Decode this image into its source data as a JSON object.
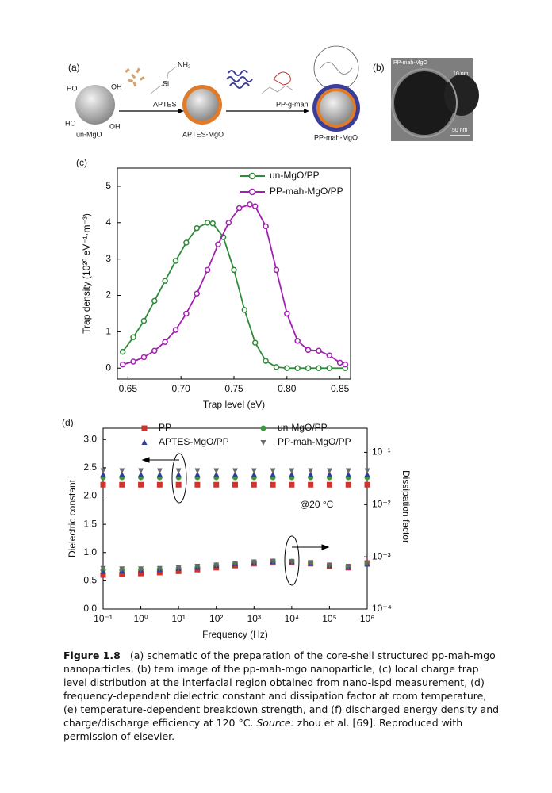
{
  "figure": {
    "panel_a": {
      "label": "(a)",
      "ho1": "HO",
      "oh1": "OH",
      "ho2": "HO",
      "oh2": "OH",
      "un_mgo": "un-MgO",
      "nh2": "NH₂",
      "si": "Si",
      "aptes": "APTES",
      "aptes_mgo": "APTES-MgO",
      "pp_g_mah": "PP-g-mah",
      "pp_mah_mgo": "PP-mah-MgO"
    },
    "panel_b": {
      "label": "(b)",
      "title": "PP-mah-MgO",
      "scale_small": "10 nm",
      "scale_large": "50 nm"
    }
  },
  "chart_data": [
    {
      "panel": "(c)",
      "type": "line",
      "xlabel": "Trap level (eV)",
      "ylabel": "Trap density (10²⁰ eV⁻¹·m⁻³)",
      "xlim": [
        0.64,
        0.86
      ],
      "ylim": [
        -0.3,
        5.5
      ],
      "xticks": [
        0.65,
        {
          "value": 0.7,
          "label": "0.70"
        },
        0.75,
        {
          "value": 0.8,
          "label": "0.80"
        },
        0.85
      ],
      "yticks": [
        0,
        1,
        2,
        3,
        4,
        5
      ],
      "legend": "upper right",
      "series": [
        {
          "name": "un-MgO/PP",
          "color": "#2e8b3a",
          "x": [
            0.645,
            0.655,
            0.665,
            0.675,
            0.685,
            0.695,
            0.705,
            0.715,
            0.725,
            0.73,
            0.74,
            0.75,
            0.76,
            0.77,
            0.78,
            0.79,
            0.8,
            0.81,
            0.82,
            0.83,
            0.84,
            0.855
          ],
          "values": [
            0.45,
            0.85,
            1.3,
            1.85,
            2.4,
            2.95,
            3.45,
            3.85,
            4.0,
            3.98,
            3.6,
            2.7,
            1.6,
            0.7,
            0.2,
            0.03,
            0.0,
            0.0,
            0.0,
            0.0,
            0.0,
            0.0
          ]
        },
        {
          "name": "PP-mah-MgO/PP",
          "color": "#a020b0",
          "x": [
            0.645,
            0.655,
            0.665,
            0.675,
            0.685,
            0.695,
            0.705,
            0.715,
            0.725,
            0.735,
            0.745,
            0.755,
            0.765,
            0.77,
            0.78,
            0.79,
            0.8,
            0.81,
            0.82,
            0.83,
            0.84,
            0.85,
            0.855
          ],
          "values": [
            0.1,
            0.18,
            0.3,
            0.48,
            0.72,
            1.05,
            1.5,
            2.05,
            2.7,
            3.4,
            4.0,
            4.4,
            4.5,
            4.45,
            3.9,
            2.7,
            1.5,
            0.75,
            0.5,
            0.48,
            0.35,
            0.15,
            0.1
          ]
        }
      ]
    },
    {
      "panel": "(d)",
      "type": "scatter",
      "xlabel": "Frequency (Hz)",
      "ylabel": "Dielectric constant",
      "y2label": "Dissipation factor",
      "annotation": "@20 °C",
      "log_x": true,
      "log_y2": true,
      "xlim": [
        0.1,
        1000000
      ],
      "ylim": [
        0,
        3.2
      ],
      "y2lim": [
        0.0001,
        0.29
      ],
      "xticks": [
        {
          "value": 0.1,
          "label": "10⁻¹"
        },
        {
          "value": 1,
          "label": "10⁰"
        },
        {
          "value": 10,
          "label": "10¹"
        },
        {
          "value": 100,
          "label": "10²"
        },
        {
          "value": 1000,
          "label": "10³"
        },
        {
          "value": 10000,
          "label": "10⁴"
        },
        {
          "value": 100000,
          "label": "10⁵"
        },
        {
          "value": 1000000,
          "label": "10⁶"
        }
      ],
      "yticks": [
        {
          "value": 0,
          "label": "0.0"
        },
        0.5,
        {
          "value": 1,
          "label": "1.0"
        },
        1.5,
        {
          "value": 2,
          "label": "2.0"
        },
        2.5,
        {
          "value": 3,
          "label": "3.0"
        }
      ],
      "y2ticks": [
        {
          "value": 0.0001,
          "label": "10⁻⁴"
        },
        {
          "value": 0.001,
          "label": "10⁻³"
        },
        {
          "value": 0.01,
          "label": "10⁻²"
        },
        {
          "value": 0.1,
          "label": "10⁻¹"
        }
      ],
      "x": [
        0.1,
        0.316,
        1,
        3.16,
        10,
        31.6,
        100,
        316,
        1000,
        3162,
        10000,
        31623,
        100000,
        316228,
        1000000
      ],
      "series": [
        {
          "name": "PP",
          "color": "#d2322d",
          "marker": "square",
          "values": [
            2.2,
            2.2,
            2.2,
            2.2,
            2.2,
            2.2,
            2.2,
            2.2,
            2.2,
            2.2,
            2.2,
            2.2,
            2.2,
            2.2,
            2.2
          ],
          "dissipation": [
            0.00045,
            0.00046,
            0.00048,
            0.0005,
            0.00053,
            0.00057,
            0.00062,
            0.00068,
            0.00074,
            0.00078,
            0.00078,
            0.00074,
            0.00066,
            0.00062,
            0.00076
          ]
        },
        {
          "name": "un-MgO/PP",
          "color": "#3c9a3c",
          "marker": "circle",
          "values": [
            2.33,
            2.33,
            2.33,
            2.33,
            2.33,
            2.33,
            2.33,
            2.33,
            2.33,
            2.33,
            2.33,
            2.33,
            2.33,
            2.33,
            2.33
          ],
          "dissipation": [
            0.00056,
            0.00056,
            0.00057,
            0.00058,
            0.0006,
            0.00064,
            0.00069,
            0.00074,
            0.00079,
            0.00082,
            0.00081,
            0.00076,
            0.00068,
            0.00064,
            0.00074
          ]
        },
        {
          "name": "APTES-MgO/PP",
          "color": "#2f3f9a",
          "marker": "triangle-up",
          "values": [
            2.38,
            2.38,
            2.38,
            2.38,
            2.38,
            2.38,
            2.38,
            2.38,
            2.38,
            2.38,
            2.38,
            2.38,
            2.38,
            2.38,
            2.38
          ],
          "dissipation": [
            0.00052,
            0.00053,
            0.00055,
            0.00057,
            0.0006,
            0.00063,
            0.00068,
            0.00073,
            0.00078,
            0.00081,
            0.0008,
            0.00075,
            0.00068,
            0.00063,
            0.00072
          ]
        },
        {
          "name": "PP-mah-MgO/PP",
          "color": "#6a6a6a",
          "marker": "triangle-down",
          "values": [
            2.45,
            2.45,
            2.45,
            2.45,
            2.45,
            2.45,
            2.45,
            2.45,
            2.45,
            2.45,
            2.45,
            2.45,
            2.45,
            2.45,
            2.45
          ],
          "dissipation": [
            0.0006,
            0.00059,
            0.00059,
            0.0006,
            0.00062,
            0.00066,
            0.0007,
            0.00075,
            0.0008,
            0.00083,
            0.00082,
            0.00078,
            0.0007,
            0.00066,
            0.00076
          ]
        }
      ]
    }
  ],
  "caption": {
    "label": "Figure 1.8",
    "text": "(a) schematic of the preparation of the core-shell structured pp-mah-mgo nanoparticles, (b) tem image of the pp-mah-mgo nanoparticle, (c) local charge trap level distribution at the interfacial region obtained from nano-ispd measurement, (d) frequency-dependent dielectric constant and dissipation factor at room temperature, (e) temperature-dependent breakdown strength, and (f) discharged energy density and charge/discharge efficiency at 120 °C. ",
    "source_label": "Source:",
    "source_text": " zhou et al. [69]. Reproduced with permission of elsevier."
  }
}
